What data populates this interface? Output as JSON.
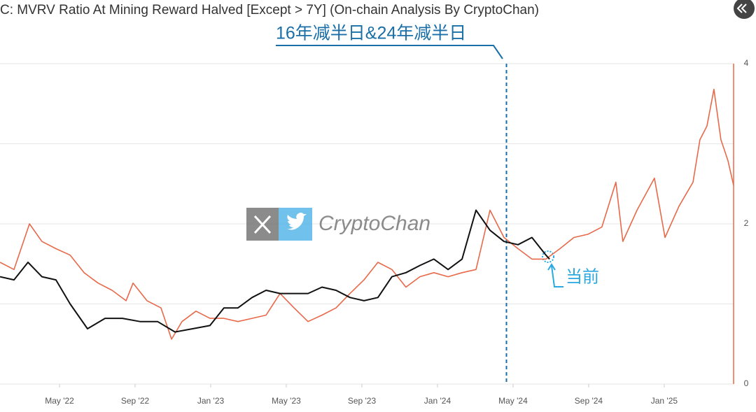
{
  "chart_data": {
    "type": "line",
    "title": "C: MVRV Ratio At Mining Reward Halved [Except > 7Y] (On-chain Analysis By CryptoChan)",
    "annotation": "16年减半日&24年减半日",
    "annotation_x": 27.65,
    "current_label": "当前",
    "watermark": "CryptoChan",
    "xlim": [
      0.85,
      39.67
    ],
    "xticks": [
      {
        "value": 4,
        "label": "May '22"
      },
      {
        "value": 8,
        "label": "Sep '22"
      },
      {
        "value": 12,
        "label": "Jan '23"
      },
      {
        "value": 16,
        "label": "May '23"
      },
      {
        "value": 20,
        "label": "Sep '23"
      },
      {
        "value": 24,
        "label": "Jan '24"
      },
      {
        "value": 28,
        "label": "May '24"
      },
      {
        "value": 32,
        "label": "Sep '24"
      },
      {
        "value": 36,
        "label": "Jan '25"
      }
    ],
    "ylim": [
      0,
      4
    ],
    "yticks": [
      0,
      2,
      4
    ],
    "grid_lines": [
      0,
      1,
      2,
      3,
      4
    ],
    "series": [
      {
        "color": "#e8694a",
        "x": [
          0.85,
          1.59,
          2.41,
          3.07,
          3.81,
          4.56,
          5.3,
          6.04,
          6.78,
          7.52,
          7.89,
          8.63,
          9.37,
          9.93,
          10.48,
          11.22,
          11.96,
          12.7,
          13.44,
          14.19,
          14.93,
          15.67,
          16.41,
          17.15,
          17.89,
          18.63,
          19.37,
          20.11,
          20.85,
          21.59,
          22.33,
          23.07,
          23.81,
          24.56,
          25.3,
          26.04,
          26.78,
          27.52,
          28.26,
          29.0,
          29.74,
          30.48,
          31.22,
          31.96,
          32.7,
          33.44,
          33.81,
          34.56,
          35.48,
          36.04,
          36.78,
          37.52,
          37.89,
          38.26,
          38.63,
          39.0,
          39.37,
          39.67
        ],
        "values": [
          1.52,
          1.43,
          2.0,
          1.78,
          1.69,
          1.61,
          1.39,
          1.26,
          1.17,
          1.04,
          1.26,
          1.04,
          0.95,
          0.56,
          0.78,
          0.91,
          0.82,
          0.82,
          0.78,
          0.82,
          0.86,
          1.13,
          0.95,
          0.78,
          0.86,
          0.95,
          1.13,
          1.3,
          1.52,
          1.43,
          1.21,
          1.34,
          1.39,
          1.34,
          1.39,
          1.43,
          2.17,
          1.83,
          1.69,
          1.56,
          1.56,
          1.69,
          1.83,
          1.87,
          1.96,
          2.52,
          1.78,
          2.17,
          2.57,
          1.83,
          2.22,
          2.52,
          3.05,
          3.22,
          3.68,
          3.05,
          2.79,
          2.48
        ]
      },
      {
        "color": "#111111",
        "x": [
          0.85,
          1.59,
          2.33,
          3.07,
          3.81,
          4.56,
          5.48,
          6.41,
          7.33,
          8.26,
          9.19,
          10.11,
          11.04,
          11.96,
          12.7,
          13.44,
          14.19,
          14.93,
          15.67,
          16.41,
          17.15,
          17.89,
          18.63,
          19.37,
          20.11,
          20.85,
          21.59,
          22.33,
          23.07,
          23.81,
          24.56,
          25.3,
          26.04,
          26.78,
          27.52,
          28.26,
          29.0,
          29.74,
          29.93
        ],
        "values": [
          1.34,
          1.3,
          1.52,
          1.34,
          1.3,
          1.0,
          0.69,
          0.82,
          0.82,
          0.78,
          0.78,
          0.65,
          0.69,
          0.73,
          0.95,
          0.95,
          1.08,
          1.17,
          1.13,
          1.13,
          1.13,
          1.21,
          1.17,
          1.08,
          1.04,
          1.08,
          1.34,
          1.39,
          1.48,
          1.56,
          1.43,
          1.56,
          2.17,
          1.92,
          1.78,
          1.74,
          1.83,
          1.61,
          1.56
        ]
      }
    ]
  }
}
